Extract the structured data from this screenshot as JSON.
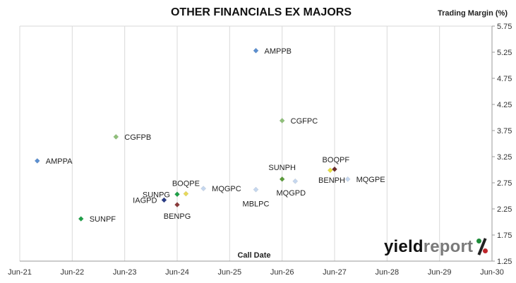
{
  "chart_data": {
    "type": "scatter",
    "title": "OTHER FINANCIALS EX MAJORS",
    "xlabel": "Call Date",
    "ylabel": "Trading Margin (%)",
    "x_ticks": [
      "Jun-21",
      "Jun-22",
      "Jun-23",
      "Jun-24",
      "Jun-25",
      "Jun-26",
      "Jun-27",
      "Jun-28",
      "Jun-29",
      "Jun-30"
    ],
    "y_ticks": [
      "1.25",
      "1.75",
      "2.25",
      "2.75",
      "3.25",
      "3.75",
      "4.25",
      "4.75",
      "5.25",
      "5.75"
    ],
    "xlim": [
      "Jun-21",
      "Jun-30"
    ],
    "ylim": [
      1.25,
      5.75
    ],
    "grid": "vertical",
    "y_axis_side": "right",
    "points": [
      {
        "label": "AMPPA",
        "x": "Oct-21",
        "y": 3.17,
        "color": "#5b8fd0"
      },
      {
        "label": "SUNPF",
        "x": "Aug-22",
        "y": 2.06,
        "color": "#1fa048"
      },
      {
        "label": "CGFPB",
        "x": "Apr-23",
        "y": 3.63,
        "color": "#8fc07a"
      },
      {
        "label": "IAGPD",
        "x": "Mar-24",
        "y": 2.42,
        "color": "#2a3c86"
      },
      {
        "label": "SUNPG",
        "x": "Jun-24",
        "y": 2.53,
        "color": "#1fa048"
      },
      {
        "label": "BENPG",
        "x": "Jun-24",
        "y": 2.33,
        "color": "#8b3b3b"
      },
      {
        "label": "BOQPE",
        "x": "Aug-24",
        "y": 2.54,
        "color": "#e8d95a"
      },
      {
        "label": "MQGPC",
        "x": "Dec-24",
        "y": 2.64,
        "color": "#c5d7ef"
      },
      {
        "label": "AMPPB",
        "x": "Dec-25",
        "y": 5.28,
        "color": "#5b8fd0"
      },
      {
        "label": "MBLPC",
        "x": "Dec-25",
        "y": 2.62,
        "color": "#c5d7ef"
      },
      {
        "label": "CGFPC",
        "x": "Jun-26",
        "y": 3.94,
        "color": "#8fc07a"
      },
      {
        "label": "SUNPH",
        "x": "Jun-26",
        "y": 2.82,
        "color": "#5a9a3a"
      },
      {
        "label": "MQGPD",
        "x": "Sep-26",
        "y": 2.78,
        "color": "#c5d7ef"
      },
      {
        "label": "BOQPF",
        "x": "May-27",
        "y": 2.99,
        "color": "#e8e040"
      },
      {
        "label": "BENPH",
        "x": "Jun-27",
        "y": 3.01,
        "color": "#6b2a2a"
      },
      {
        "label": "MQGPE",
        "x": "Sep-27",
        "y": 2.82,
        "color": "#c5d7ef"
      }
    ]
  },
  "logo": {
    "word1": "yield",
    "word2": "report"
  }
}
